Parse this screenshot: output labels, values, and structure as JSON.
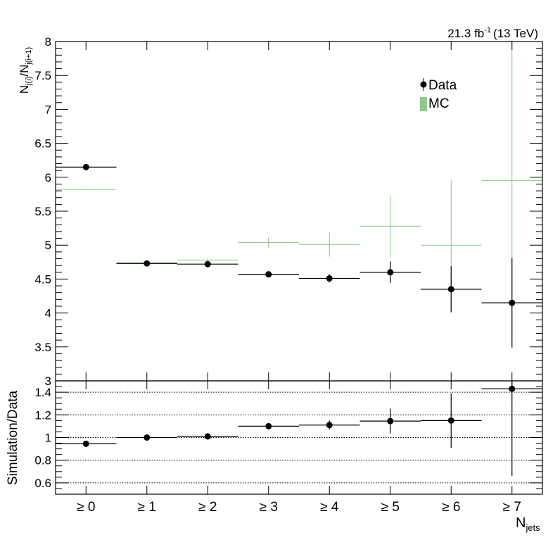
{
  "header": {
    "lumi_value": "21.3 fb",
    "lumi_exponent": "-1",
    "energy": "(13 TeV)"
  },
  "colors": {
    "data": "#000000",
    "mc": "#88c488",
    "mc_band": "#8fc98f",
    "frame": "#000000"
  },
  "chart_data": [
    {
      "type": "scatter",
      "panel": "main",
      "ylabel_main": "N",
      "ylabel_sub": "j(i)",
      "ylabel_over": "/N",
      "ylabel_sub2": "j(i+1)",
      "ylim": [
        3,
        8
      ],
      "yticks": [
        "3",
        "3.5",
        "4",
        "4.5",
        "5",
        "5.5",
        "6",
        "6.5",
        "7",
        "7.5",
        "8"
      ],
      "categories": [
        "≥ 0",
        "≥ 1",
        "≥ 2",
        "≥ 3",
        "≥ 4",
        "≥ 5",
        "≥ 6",
        "≥ 7"
      ],
      "legend": {
        "placement": "top-right",
        "entries": [
          "Data",
          "MC"
        ]
      },
      "series": [
        {
          "name": "Data",
          "style": "marker",
          "values": [
            6.15,
            4.73,
            4.72,
            4.57,
            4.51,
            4.6,
            4.35,
            4.15
          ],
          "errors": [
            0.02,
            0.02,
            0.03,
            0.03,
            0.06,
            0.16,
            0.34,
            0.66
          ]
        },
        {
          "name": "MC",
          "style": "band",
          "values": [
            5.82,
            4.74,
            4.78,
            5.04,
            5.01,
            5.28,
            5.0,
            5.95
          ],
          "errors": [
            0.01,
            0.01,
            0.03,
            0.08,
            0.18,
            0.45,
            0.96,
            2.3
          ]
        }
      ]
    },
    {
      "type": "scatter",
      "panel": "ratio",
      "ylabel": "Simulation/Data",
      "ylim": [
        0.5,
        1.5
      ],
      "yticks": [
        "0.6",
        "0.8",
        "1",
        "1.2",
        "1.4"
      ],
      "gridlines": [
        0.6,
        0.8,
        1.0,
        1.2,
        1.4
      ],
      "grid": true,
      "xlabel_main": "N",
      "xlabel_sub": "jets",
      "categories": [
        "≥ 0",
        "≥ 1",
        "≥ 2",
        "≥ 3",
        "≥ 4",
        "≥ 5",
        "≥ 6",
        "≥ 7"
      ],
      "values": [
        0.945,
        1.0,
        1.01,
        1.1,
        1.11,
        1.145,
        1.15,
        1.43
      ],
      "errors": [
        0.01,
        0.01,
        0.01,
        0.02,
        0.04,
        0.11,
        0.24,
        0.77
      ]
    }
  ]
}
